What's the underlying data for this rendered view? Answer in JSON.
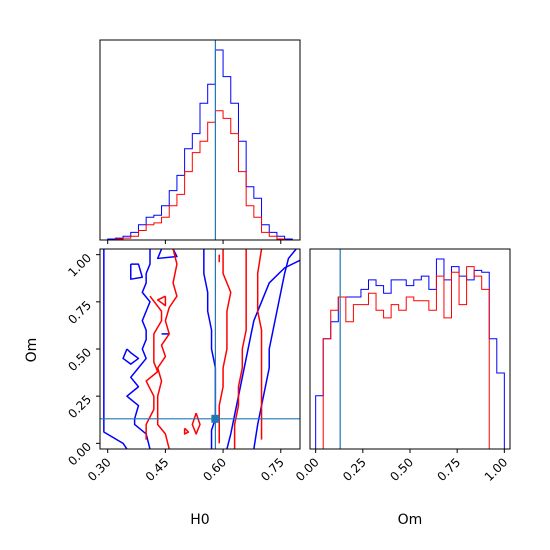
{
  "chart_data": {
    "type": "corner",
    "parameters": [
      "H0",
      "Om"
    ],
    "truth": {
      "H0": 0.58,
      "Om": 0.13
    },
    "colors": {
      "series_a": "#0000ff",
      "series_b": "#ff0000",
      "truth": "#1f77b4",
      "axes": "#000000"
    },
    "panels": {
      "h0_hist": {
        "xlim": [
          0.28,
          0.8
        ],
        "bins_x": [
          0.3,
          0.32,
          0.34,
          0.36,
          0.38,
          0.4,
          0.42,
          0.44,
          0.46,
          0.48,
          0.5,
          0.52,
          0.54,
          0.56,
          0.58,
          0.6,
          0.62,
          0.64,
          0.66,
          0.68,
          0.7,
          0.72,
          0.74,
          0.76,
          0.78
        ],
        "series_a": [
          0.005,
          0.01,
          0.02,
          0.04,
          0.08,
          0.12,
          0.13,
          0.18,
          0.26,
          0.34,
          0.48,
          0.56,
          0.72,
          0.82,
          1.0,
          0.86,
          0.72,
          0.52,
          0.28,
          0.22,
          0.08,
          0.04,
          0.02,
          0.005
        ],
        "series_b": [
          0.0,
          0.005,
          0.01,
          0.02,
          0.05,
          0.08,
          0.09,
          0.12,
          0.18,
          0.24,
          0.36,
          0.46,
          0.52,
          0.62,
          0.68,
          0.64,
          0.56,
          0.36,
          0.18,
          0.12,
          0.04,
          0.02,
          0.005,
          0.0
        ]
      },
      "om_hist": {
        "xlim": [
          -0.03,
          1.03
        ],
        "bins_x": [
          0.0,
          0.04,
          0.08,
          0.12,
          0.16,
          0.2,
          0.24,
          0.28,
          0.32,
          0.36,
          0.4,
          0.44,
          0.48,
          0.52,
          0.56,
          0.6,
          0.64,
          0.68,
          0.72,
          0.76,
          0.8,
          0.84,
          0.88,
          0.92,
          0.96,
          1.0
        ],
        "series_a": [
          0.28,
          0.58,
          0.67,
          0.8,
          0.8,
          0.8,
          0.84,
          0.89,
          0.86,
          0.82,
          0.89,
          0.89,
          0.86,
          0.89,
          0.91,
          0.84,
          1.0,
          0.89,
          0.96,
          0.91,
          0.89,
          0.94,
          0.93,
          0.58,
          0.4
        ],
        "series_b": [
          0.0,
          0.58,
          0.73,
          0.8,
          0.67,
          0.76,
          0.76,
          0.82,
          0.73,
          0.69,
          0.76,
          0.73,
          0.8,
          0.78,
          0.78,
          0.73,
          0.91,
          0.69,
          0.93,
          0.76,
          0.96,
          0.91,
          0.84,
          0.0,
          0.0
        ]
      },
      "joint": {
        "xlim": [
          0.28,
          0.8
        ],
        "ylim": [
          -0.03,
          1.03
        ],
        "contours_a": [
          [
            [
              0.35,
              -0.03
            ],
            [
              0.34,
              0.0
            ],
            [
              0.29,
              0.06
            ],
            [
              0.29,
              1.03
            ]
          ],
          [
            [
              0.36,
              0.95
            ],
            [
              0.38,
              0.95
            ],
            [
              0.39,
              0.88
            ],
            [
              0.36,
              0.87
            ],
            [
              0.36,
              0.95
            ]
          ],
          [
            [
              0.35,
              0.5
            ],
            [
              0.36,
              0.48
            ],
            [
              0.38,
              0.45
            ],
            [
              0.36,
              0.42
            ],
            [
              0.34,
              0.45
            ],
            [
              0.35,
              0.5
            ]
          ],
          [
            [
              0.41,
              -0.03
            ],
            [
              0.4,
              0.05
            ],
            [
              0.37,
              0.1
            ],
            [
              0.37,
              0.13
            ],
            [
              0.38,
              0.2
            ],
            [
              0.35,
              0.25
            ],
            [
              0.38,
              0.3
            ],
            [
              0.36,
              0.35
            ],
            [
              0.38,
              0.4
            ],
            [
              0.4,
              0.45
            ],
            [
              0.39,
              0.5
            ],
            [
              0.4,
              0.55
            ],
            [
              0.4,
              0.6
            ],
            [
              0.39,
              0.65
            ],
            [
              0.4,
              0.7
            ],
            [
              0.41,
              0.75
            ],
            [
              0.39,
              0.8
            ],
            [
              0.4,
              0.85
            ],
            [
              0.4,
              0.9
            ],
            [
              0.41,
              0.95
            ],
            [
              0.41,
              1.03
            ]
          ],
          [
            [
              0.47,
              1.03
            ],
            [
              0.48,
              0.99
            ],
            [
              0.43,
              0.98
            ],
            [
              0.44,
              1.03
            ]
          ],
          [
            [
              0.44,
              0.58
            ],
            [
              0.46,
              0.58
            ]
          ],
          [
            [
              0.55,
              1.03
            ],
            [
              0.55,
              0.9
            ],
            [
              0.56,
              0.8
            ],
            [
              0.56,
              0.7
            ],
            [
              0.57,
              0.6
            ],
            [
              0.57,
              0.5
            ],
            [
              0.58,
              0.4
            ],
            [
              0.58,
              0.3
            ],
            [
              0.58,
              0.2
            ],
            [
              0.58,
              0.13
            ],
            [
              0.57,
              0.07
            ],
            [
              0.57,
              -0.03
            ]
          ],
          [
            [
              0.61,
              -0.03
            ],
            [
              0.62,
              0.05
            ],
            [
              0.63,
              0.15
            ],
            [
              0.64,
              0.25
            ],
            [
              0.65,
              0.35
            ],
            [
              0.66,
              0.45
            ],
            [
              0.67,
              0.55
            ],
            [
              0.68,
              0.65
            ],
            [
              0.7,
              0.75
            ],
            [
              0.72,
              0.85
            ],
            [
              0.76,
              0.93
            ],
            [
              0.8,
              0.97
            ]
          ],
          [
            [
              0.79,
              1.03
            ],
            [
              0.77,
              0.98
            ],
            [
              0.76,
              0.9
            ],
            [
              0.75,
              0.8
            ],
            [
              0.74,
              0.7
            ],
            [
              0.73,
              0.6
            ],
            [
              0.72,
              0.5
            ],
            [
              0.72,
              0.4
            ],
            [
              0.71,
              0.3
            ],
            [
              0.7,
              0.2
            ],
            [
              0.69,
              0.1
            ],
            [
              0.68,
              -0.03
            ]
          ]
        ],
        "contours_b": [
          [
            [
              0.47,
              1.03
            ],
            [
              0.48,
              0.95
            ],
            [
              0.47,
              0.85
            ],
            [
              0.48,
              0.78
            ],
            [
              0.46,
              0.72
            ],
            [
              0.45,
              0.65
            ],
            [
              0.46,
              0.58
            ],
            [
              0.44,
              0.52
            ],
            [
              0.45,
              0.46
            ],
            [
              0.43,
              0.4
            ],
            [
              0.44,
              0.33
            ],
            [
              0.43,
              0.25
            ],
            [
              0.43,
              0.18
            ],
            [
              0.43,
              0.1
            ],
            [
              0.45,
              0.05
            ],
            [
              0.46,
              -0.03
            ]
          ],
          [
            [
              0.41,
              0.78
            ],
            [
              0.44,
              0.7
            ],
            [
              0.44,
              0.65
            ],
            [
              0.42,
              0.58
            ],
            [
              0.42,
              0.5
            ],
            [
              0.42,
              0.43
            ],
            [
              0.43,
              0.38
            ],
            [
              0.4,
              0.33
            ],
            [
              0.42,
              0.25
            ],
            [
              0.42,
              0.18
            ],
            [
              0.4,
              0.1
            ],
            [
              0.4,
              0.02
            ]
          ],
          [
            [
              0.5,
              0.08
            ],
            [
              0.51,
              0.06
            ],
            [
              0.5,
              0.05
            ],
            [
              0.5,
              0.08
            ]
          ],
          [
            [
              0.45,
              0.78
            ],
            [
              0.45,
              0.73
            ],
            [
              0.43,
              0.76
            ],
            [
              0.45,
              0.78
            ]
          ],
          [
            [
              0.6,
              1.03
            ],
            [
              0.6,
              0.9
            ],
            [
              0.62,
              0.8
            ],
            [
              0.61,
              0.7
            ],
            [
              0.61,
              0.6
            ],
            [
              0.61,
              0.5
            ],
            [
              0.6,
              0.4
            ],
            [
              0.6,
              0.3
            ],
            [
              0.59,
              0.2
            ],
            [
              0.59,
              0.1
            ],
            [
              0.59,
              0.0
            ]
          ],
          [
            [
              0.63,
              -0.03
            ],
            [
              0.63,
              0.1
            ],
            [
              0.64,
              0.2
            ],
            [
              0.64,
              0.3
            ],
            [
              0.65,
              0.4
            ],
            [
              0.65,
              0.5
            ],
            [
              0.66,
              0.6
            ],
            [
              0.66,
              0.7
            ],
            [
              0.66,
              0.8
            ],
            [
              0.66,
              0.9
            ],
            [
              0.66,
              1.03
            ]
          ],
          [
            [
              0.7,
              1.03
            ],
            [
              0.69,
              0.9
            ],
            [
              0.69,
              0.8
            ],
            [
              0.69,
              0.7
            ],
            [
              0.7,
              0.6
            ],
            [
              0.7,
              0.5
            ],
            [
              0.7,
              0.4
            ],
            [
              0.7,
              0.3
            ],
            [
              0.7,
              0.2
            ],
            [
              0.7,
              0.1
            ],
            [
              0.7,
              0.02
            ]
          ],
          [
            [
              0.53,
              0.16
            ],
            [
              0.54,
              0.1
            ],
            [
              0.53,
              0.05
            ],
            [
              0.52,
              0.1
            ],
            [
              0.53,
              0.16
            ]
          ],
          [
            [
              0.59,
              1.0
            ],
            [
              0.59,
              0.96
            ]
          ]
        ]
      }
    },
    "ticks": {
      "h0": {
        "values": [
          0.3,
          0.45,
          0.6,
          0.75
        ],
        "labels": [
          "0.30",
          "0.45",
          "0.60",
          "0.75"
        ]
      },
      "om": {
        "values": [
          0.0,
          0.25,
          0.5,
          0.75,
          1.0
        ],
        "labels": [
          "0.00",
          "0.25",
          "0.50",
          "0.75",
          "1.00"
        ]
      },
      "h0_hist_minor": [
        0.3,
        0.45,
        0.6,
        0.75
      ]
    },
    "xlabel_left": "H0",
    "xlabel_right": "Om",
    "ylabel": "Om"
  }
}
